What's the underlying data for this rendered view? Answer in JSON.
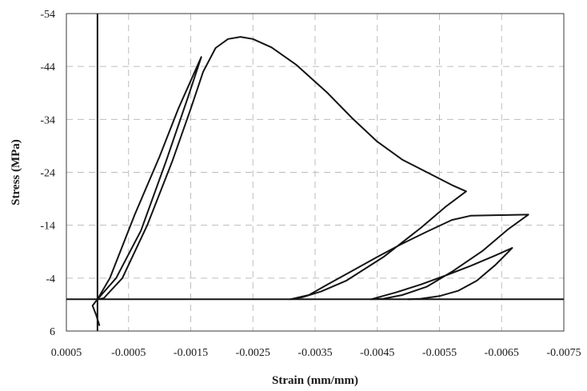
{
  "chart_data": {
    "type": "line",
    "title": "",
    "xlabel": "Strain (mm/mm)",
    "ylabel": "Stress (MPa)",
    "xlim": [
      0.0005,
      -0.0075
    ],
    "ylim": [
      6,
      -54
    ],
    "x_ticks": [
      0.0005,
      -0.0005,
      -0.0015,
      -0.0025,
      -0.0035,
      -0.0045,
      -0.0055,
      -0.0065,
      -0.0075
    ],
    "x_tick_labels": [
      "0.0005",
      "-0.0005",
      "-0.0015",
      "-0.0025",
      "-0.0035",
      "-0.0045",
      "-0.0055",
      "-0.0065",
      "-0.0075"
    ],
    "y_ticks": [
      -54,
      -44,
      -34,
      -24,
      -14,
      -4,
      6
    ],
    "y_tick_labels": [
      "-54",
      "-44",
      "-34",
      "-24",
      "-14",
      "-4",
      "6"
    ],
    "grid": true,
    "legend": "none",
    "series": [
      {
        "points": [
          [
            -3e-05,
            4.9
          ],
          [
            2e-05,
            3.0
          ],
          [
            8e-05,
            1.2
          ],
          [
            0.0,
            0.0
          ],
          [
            -0.0002,
            -4
          ],
          [
            -0.0006,
            -16
          ],
          [
            -0.001,
            -27
          ],
          [
            -0.0013,
            -36
          ],
          [
            -0.00167,
            -45.8
          ],
          [
            -0.00145,
            -38
          ],
          [
            -0.0011,
            -26
          ],
          [
            -0.0007,
            -13
          ],
          [
            -0.0003,
            -4
          ],
          [
            0.0,
            0.0
          ],
          [
            -0.0001,
            -0.2
          ],
          [
            -0.0004,
            -4
          ],
          [
            -0.0008,
            -14
          ],
          [
            -0.0012,
            -26
          ],
          [
            -0.0015,
            -36
          ],
          [
            -0.0017,
            -43
          ],
          [
            -0.0019,
            -47.5
          ],
          [
            -0.0021,
            -49.2
          ],
          [
            -0.0023,
            -49.6
          ],
          [
            -0.0025,
            -49.2
          ],
          [
            -0.0028,
            -47.6
          ],
          [
            -0.0032,
            -44.3
          ],
          [
            -0.0037,
            -39.0
          ],
          [
            -0.0041,
            -34.2
          ],
          [
            -0.0045,
            -29.8
          ],
          [
            -0.0049,
            -26.4
          ],
          [
            -0.0053,
            -24.0
          ],
          [
            -0.0057,
            -21.6
          ],
          [
            -0.00593,
            -20.4
          ],
          [
            -0.0056,
            -17.5
          ],
          [
            -0.0052,
            -13.5
          ],
          [
            -0.0046,
            -8
          ],
          [
            -0.004,
            -3.5
          ],
          [
            -0.0036,
            -1.5
          ],
          [
            -0.0033,
            -0.4
          ],
          [
            -0.0031,
            0.0
          ],
          [
            -0.0034,
            -0.8
          ],
          [
            -0.0037,
            -2.8
          ],
          [
            -0.0041,
            -5.4
          ],
          [
            -0.0045,
            -8
          ],
          [
            -0.0049,
            -10.5
          ],
          [
            -0.0053,
            -12.8
          ],
          [
            -0.0057,
            -15.0
          ],
          [
            -0.006,
            -15.8
          ],
          [
            -0.0064,
            -15.9
          ],
          [
            -0.00693,
            -16.0
          ],
          [
            -0.0066,
            -13.2
          ],
          [
            -0.0062,
            -9.2
          ],
          [
            -0.0057,
            -5.2
          ],
          [
            -0.0053,
            -2.4
          ],
          [
            -0.0049,
            -0.8
          ],
          [
            -0.0046,
            -0.1
          ],
          [
            -0.0044,
            0.0
          ],
          [
            -0.0048,
            -1.3
          ],
          [
            -0.0052,
            -2.8
          ],
          [
            -0.0056,
            -4.5
          ],
          [
            -0.006,
            -6.3
          ],
          [
            -0.0064,
            -8.3
          ],
          [
            -0.00667,
            -9.7
          ],
          [
            -0.0064,
            -6.5
          ],
          [
            -0.0061,
            -3.5
          ],
          [
            -0.0058,
            -1.6
          ],
          [
            -0.0055,
            -0.6
          ],
          [
            -0.0052,
            -0.1
          ],
          [
            -0.005,
            0.0
          ]
        ]
      }
    ]
  }
}
